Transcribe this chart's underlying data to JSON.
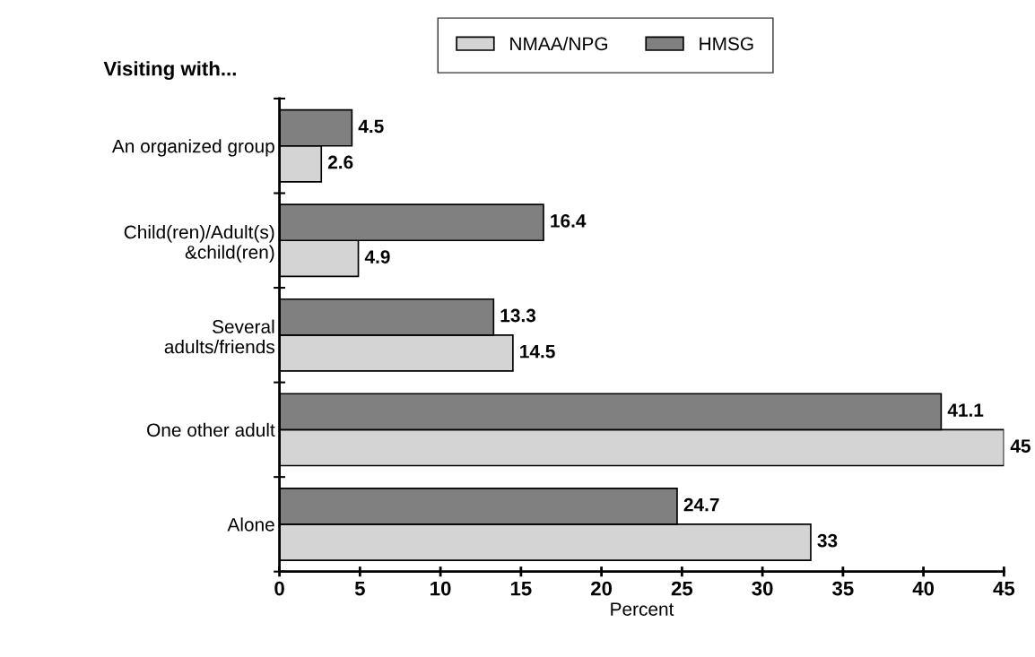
{
  "chart_data": {
    "type": "bar",
    "orientation": "horizontal",
    "title": "Visiting with...",
    "xlabel": "Percent",
    "categories": [
      "An organized group",
      "Child(ren)/Adult(s)\n&child(ren)",
      "Several\nadults/friends",
      "One other adult",
      "Alone"
    ],
    "series": [
      {
        "name": "NMAA/NPG",
        "color": "#d4d4d4",
        "values": [
          2.6,
          4.9,
          14.5,
          45,
          33
        ]
      },
      {
        "name": "HMSG",
        "color": "#808080",
        "values": [
          4.5,
          16.4,
          13.3,
          41.1,
          24.7
        ]
      }
    ],
    "xlim": [
      0,
      45
    ],
    "xticks": [
      0,
      5,
      10,
      15,
      20,
      25,
      30,
      35,
      40,
      45
    ],
    "data_labels": true,
    "grid": false,
    "legend": "top"
  }
}
